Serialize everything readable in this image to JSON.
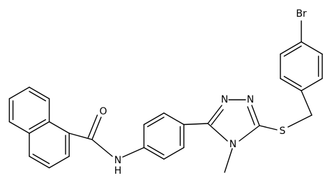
{
  "atoms": [
    {
      "label": "Br"
    },
    {
      "label": "O"
    },
    {
      "label": "N"
    },
    {
      "label": "H"
    },
    {
      "label": "N"
    },
    {
      "label": "N"
    },
    {
      "label": "N"
    },
    {
      "label": "S"
    }
  ]
}
